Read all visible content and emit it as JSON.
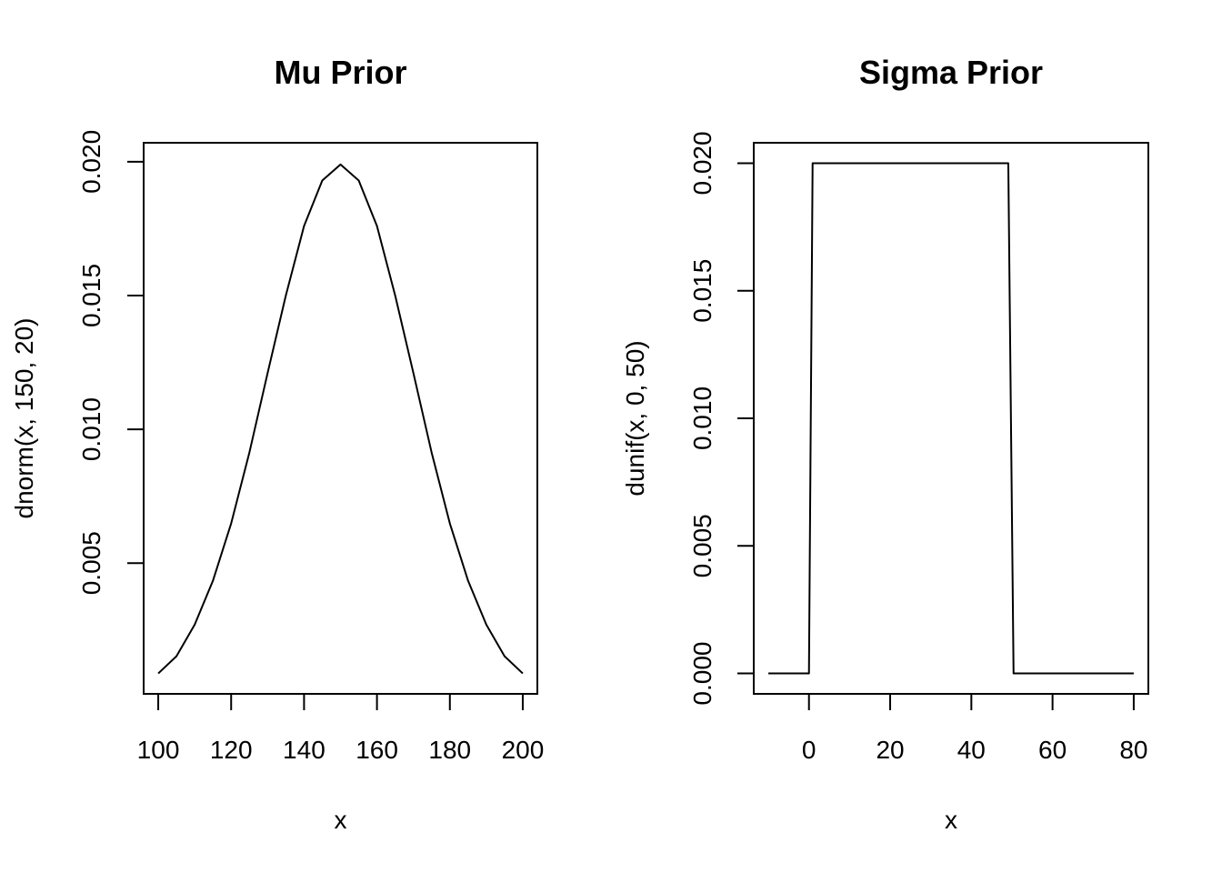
{
  "chart_data": [
    {
      "type": "line",
      "title": "Mu Prior",
      "xlabel": "x",
      "ylabel": "dnorm(x, 150, 20)",
      "xlim": [
        100,
        200
      ],
      "ylim": [
        0.000876,
        0.019947
      ],
      "xticks": [
        100,
        120,
        140,
        160,
        180,
        200
      ],
      "yticks": [
        0.005,
        0.01,
        0.015,
        0.02
      ],
      "ytick_labels": [
        "0.005",
        "0.010",
        "0.015",
        "0.020"
      ],
      "grid": false,
      "series": [
        {
          "x": [
            100,
            105,
            110,
            115,
            120,
            125,
            130,
            135,
            140,
            145,
            150,
            155,
            160,
            165,
            170,
            175,
            180,
            185,
            190,
            195,
            200
          ],
          "y": [
            0.000876,
            0.00152,
            0.0027,
            0.00434,
            0.00648,
            0.00913,
            0.0121,
            0.015,
            0.0176,
            0.0193,
            0.0199,
            0.0193,
            0.0176,
            0.015,
            0.0121,
            0.00913,
            0.00648,
            0.00434,
            0.0027,
            0.00152,
            0.000876
          ]
        }
      ]
    },
    {
      "type": "line",
      "title": "Sigma Prior",
      "xlabel": "x",
      "ylabel": "dunif(x, 0, 50)",
      "xlim": [
        -10,
        80
      ],
      "ylim": [
        0,
        0.02
      ],
      "xticks": [
        0,
        20,
        40,
        60,
        80
      ],
      "yticks": [
        0.0,
        0.005,
        0.01,
        0.015,
        0.02
      ],
      "ytick_labels": [
        "0.000",
        "0.005",
        "0.010",
        "0.015",
        "0.020"
      ],
      "grid": false,
      "series": [
        {
          "x": [
            -10,
            0,
            0.9,
            49.1,
            50.4,
            80
          ],
          "y": [
            0,
            0,
            0.02,
            0.02,
            0,
            0
          ]
        }
      ]
    }
  ]
}
